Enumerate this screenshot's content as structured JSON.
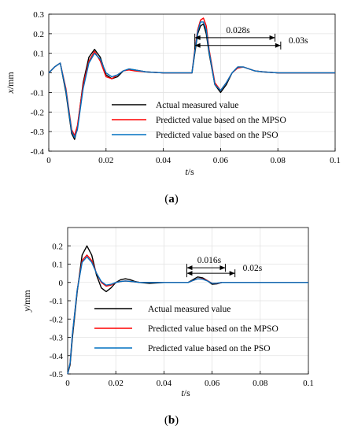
{
  "chart_data": [
    {
      "type": "line",
      "panel": "a",
      "caption_open": "(",
      "caption_letter": "a",
      "caption_close": ")",
      "xlabel_var": "t",
      "xlabel_unit": "/s",
      "ylabel_var": "x",
      "ylabel_unit": "/mm",
      "xlim": [
        0,
        0.1
      ],
      "ylim": [
        -0.4,
        0.3
      ],
      "xticks": [
        0,
        0.02,
        0.04,
        0.06,
        0.08,
        0.1
      ],
      "xtick_labels": [
        "0",
        "0.02",
        "0.04",
        "0.06",
        "0.08",
        "0.1"
      ],
      "yticks": [
        -0.4,
        -0.3,
        -0.2,
        -0.1,
        0,
        0.1,
        0.2,
        0.3
      ],
      "ytick_labels": [
        "-0.4",
        "-0.3",
        "-0.2",
        "-0.1",
        "0",
        "0.1",
        "0.2",
        "0.3"
      ],
      "grid": true,
      "legend_position": "bottom-center",
      "series": [
        {
          "name": "Actual measured value",
          "color": "#000000",
          "x": [
            0,
            0.002,
            0.004,
            0.006,
            0.008,
            0.009,
            0.01,
            0.012,
            0.014,
            0.016,
            0.018,
            0.02,
            0.022,
            0.024,
            0.026,
            0.028,
            0.03,
            0.034,
            0.04,
            0.045,
            0.05,
            0.051,
            0.052,
            0.053,
            0.054,
            0.055,
            0.056,
            0.058,
            0.06,
            0.062,
            0.064,
            0.066,
            0.068,
            0.07,
            0.072,
            0.075,
            0.08,
            0.09,
            0.1
          ],
          "y": [
            0,
            0.03,
            0.05,
            -0.1,
            -0.31,
            -0.34,
            -0.28,
            -0.05,
            0.08,
            0.12,
            0.08,
            -0.01,
            -0.03,
            -0.02,
            0.01,
            0.02,
            0.015,
            0.005,
            0,
            0,
            0,
            0.1,
            0.2,
            0.24,
            0.25,
            0.2,
            0.1,
            -0.06,
            -0.1,
            -0.06,
            0,
            0.03,
            0.03,
            0.02,
            0.01,
            0.005,
            0,
            0,
            0
          ]
        },
        {
          "name": "Predicted value based on the MPSO",
          "color": "#ff0000",
          "x": [
            0,
            0.002,
            0.004,
            0.006,
            0.008,
            0.009,
            0.01,
            0.012,
            0.014,
            0.016,
            0.018,
            0.02,
            0.022,
            0.024,
            0.026,
            0.028,
            0.03,
            0.034,
            0.04,
            0.045,
            0.05,
            0.051,
            0.052,
            0.053,
            0.054,
            0.055,
            0.056,
            0.058,
            0.06,
            0.062,
            0.064,
            0.066,
            0.068,
            0.07,
            0.072,
            0.075,
            0.08,
            0.09,
            0.1
          ],
          "y": [
            0,
            0.03,
            0.05,
            -0.08,
            -0.29,
            -0.32,
            -0.27,
            -0.06,
            0.06,
            0.11,
            0.06,
            -0.02,
            -0.03,
            -0.01,
            0.01,
            0.015,
            0.01,
            0.005,
            0,
            0,
            0,
            0.12,
            0.22,
            0.27,
            0.28,
            0.24,
            0.12,
            -0.05,
            -0.09,
            -0.05,
            0,
            0.025,
            0.03,
            0.02,
            0.01,
            0.005,
            0,
            0,
            0
          ]
        },
        {
          "name": "Predicted value based on the PSO",
          "color": "#0070c0",
          "x": [
            0,
            0.002,
            0.004,
            0.006,
            0.008,
            0.009,
            0.01,
            0.012,
            0.014,
            0.016,
            0.018,
            0.02,
            0.022,
            0.024,
            0.026,
            0.028,
            0.03,
            0.034,
            0.04,
            0.045,
            0.05,
            0.051,
            0.052,
            0.053,
            0.054,
            0.055,
            0.056,
            0.058,
            0.06,
            0.062,
            0.064,
            0.066,
            0.068,
            0.07,
            0.072,
            0.075,
            0.08,
            0.09,
            0.1
          ],
          "y": [
            0,
            0.03,
            0.05,
            -0.09,
            -0.3,
            -0.33,
            -0.29,
            -0.08,
            0.05,
            0.1,
            0.07,
            0,
            -0.02,
            -0.01,
            0.01,
            0.02,
            0.015,
            0.005,
            0,
            0,
            0,
            0.11,
            0.21,
            0.26,
            0.26,
            0.22,
            0.11,
            -0.06,
            -0.09,
            -0.05,
            0,
            0.03,
            0.03,
            0.02,
            0.01,
            0.005,
            0,
            0,
            0
          ]
        }
      ],
      "annotations": [
        {
          "text": "0.028s",
          "x_start": 0.051,
          "x_end": 0.079,
          "y": 0.18
        },
        {
          "text": "0.03s",
          "x_start": 0.051,
          "x_end": 0.081,
          "y": 0.14
        }
      ]
    },
    {
      "type": "line",
      "panel": "b",
      "caption_open": "(",
      "caption_letter": "b",
      "caption_close": ")",
      "xlabel_var": "t",
      "xlabel_unit": "/s",
      "ylabel_var": "y",
      "ylabel_unit": "/mm",
      "xlim": [
        0,
        0.1
      ],
      "ylim": [
        -0.5,
        0.3
      ],
      "xticks": [
        0,
        0.02,
        0.04,
        0.06,
        0.08,
        0.1
      ],
      "xtick_labels": [
        "0",
        "0.02",
        "0.04",
        "0.06",
        "0.08",
        "0.1"
      ],
      "yticks": [
        -0.5,
        -0.4,
        -0.3,
        -0.2,
        -0.1,
        0,
        0.1,
        0.2
      ],
      "ytick_labels": [
        "-0.5",
        "-0.4",
        "-0.3",
        "-0.2",
        "-0.1",
        "0",
        "0.1",
        "0.2"
      ],
      "grid": true,
      "legend_position": "bottom-center",
      "series": [
        {
          "name": "Actual measured value",
          "color": "#000000",
          "x": [
            0,
            0.001,
            0.002,
            0.004,
            0.006,
            0.008,
            0.01,
            0.012,
            0.014,
            0.016,
            0.018,
            0.02,
            0.022,
            0.024,
            0.026,
            0.028,
            0.03,
            0.034,
            0.04,
            0.05,
            0.052,
            0.054,
            0.056,
            0.058,
            0.06,
            0.062,
            0.064,
            0.068,
            0.075,
            0.085,
            0.1
          ],
          "y": [
            -0.5,
            -0.45,
            -0.3,
            -0.05,
            0.15,
            0.2,
            0.15,
            0.04,
            -0.03,
            -0.05,
            -0.03,
            0,
            0.015,
            0.02,
            0.015,
            0.005,
            0,
            -0.005,
            0,
            0,
            0.015,
            0.03,
            0.025,
            0.01,
            -0.01,
            -0.008,
            0,
            0,
            0,
            0,
            0
          ]
        },
        {
          "name": "Predicted value based on the MPSO",
          "color": "#ff0000",
          "x": [
            0,
            0.001,
            0.002,
            0.004,
            0.006,
            0.008,
            0.01,
            0.012,
            0.014,
            0.016,
            0.018,
            0.02,
            0.022,
            0.024,
            0.026,
            0.028,
            0.03,
            0.034,
            0.04,
            0.05,
            0.052,
            0.054,
            0.056,
            0.058,
            0.06,
            0.062,
            0.064,
            0.068,
            0.075,
            0.085,
            0.1
          ],
          "y": [
            -0.5,
            -0.44,
            -0.28,
            -0.04,
            0.12,
            0.15,
            0.12,
            0.05,
            0,
            -0.02,
            -0.015,
            0,
            0.005,
            0.008,
            0.006,
            0.003,
            0,
            0,
            0,
            0,
            0.01,
            0.02,
            0.02,
            0.01,
            -0.005,
            -0.005,
            0,
            0,
            0,
            0,
            0
          ]
        },
        {
          "name": "Predicted value based on the PSO",
          "color": "#0070c0",
          "x": [
            0,
            0.001,
            0.002,
            0.004,
            0.006,
            0.008,
            0.01,
            0.012,
            0.014,
            0.016,
            0.018,
            0.02,
            0.022,
            0.024,
            0.026,
            0.028,
            0.03,
            0.034,
            0.04,
            0.05,
            0.052,
            0.054,
            0.056,
            0.058,
            0.06,
            0.062,
            0.064,
            0.068,
            0.075,
            0.085,
            0.1
          ],
          "y": [
            -0.5,
            -0.44,
            -0.28,
            -0.04,
            0.11,
            0.14,
            0.11,
            0.05,
            0.005,
            -0.015,
            -0.01,
            0,
            0.005,
            0.008,
            0.006,
            0.003,
            0,
            0,
            0,
            0,
            0.01,
            0.02,
            0.018,
            0.008,
            -0.005,
            -0.004,
            0,
            0,
            0,
            0,
            0
          ]
        }
      ],
      "annotations": [
        {
          "text": "0.016s",
          "x_start": 0.0495,
          "x_end": 0.0655,
          "y": 0.08
        },
        {
          "text": "0.02s",
          "x_start": 0.0495,
          "x_end": 0.0695,
          "y": 0.05
        }
      ]
    }
  ]
}
